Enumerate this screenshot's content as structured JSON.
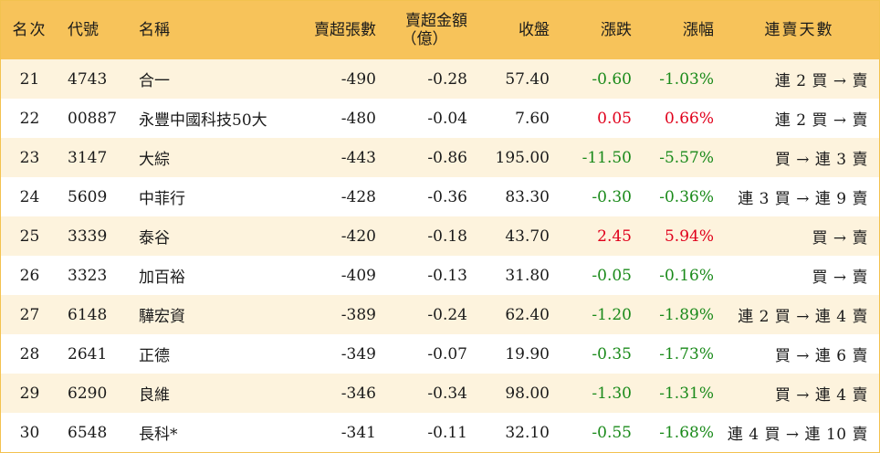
{
  "headers": {
    "rank": "名次",
    "code": "代號",
    "name": "名稱",
    "net_sell_lots": "賣超張數",
    "net_sell_amount_l1": "賣超金額",
    "net_sell_amount_l2": "（億）",
    "close": "收盤",
    "change": "漲跌",
    "change_pct": "漲幅",
    "streak": "連賣天數"
  },
  "colors": {
    "header_bg": "#f7c35a",
    "stripe_bg": "#fdf3dd",
    "up": "#e0001b",
    "down": "#1a8a1a"
  },
  "rows": [
    {
      "rank": "21",
      "code": "4743",
      "name": "合一",
      "lots": "-490",
      "amount": "-0.28",
      "close": "57.40",
      "change": "-0.60",
      "pct": "-1.03%",
      "streak": "連 2 買 → 賣",
      "dir": "down"
    },
    {
      "rank": "22",
      "code": "00887",
      "name": "永豐中國科技50大",
      "lots": "-480",
      "amount": "-0.04",
      "close": "7.60",
      "change": "0.05",
      "pct": "0.66%",
      "streak": "連 2 買 → 賣",
      "dir": "up"
    },
    {
      "rank": "23",
      "code": "3147",
      "name": "大綜",
      "lots": "-443",
      "amount": "-0.86",
      "close": "195.00",
      "change": "-11.50",
      "pct": "-5.57%",
      "streak": "買 → 連 3 賣",
      "dir": "down"
    },
    {
      "rank": "24",
      "code": "5609",
      "name": "中菲行",
      "lots": "-428",
      "amount": "-0.36",
      "close": "83.30",
      "change": "-0.30",
      "pct": "-0.36%",
      "streak": "連 3 買 → 連 9 賣",
      "dir": "down"
    },
    {
      "rank": "25",
      "code": "3339",
      "name": "泰谷",
      "lots": "-420",
      "amount": "-0.18",
      "close": "43.70",
      "change": "2.45",
      "pct": "5.94%",
      "streak": "買 → 賣",
      "dir": "up"
    },
    {
      "rank": "26",
      "code": "3323",
      "name": "加百裕",
      "lots": "-409",
      "amount": "-0.13",
      "close": "31.80",
      "change": "-0.05",
      "pct": "-0.16%",
      "streak": "買 → 賣",
      "dir": "down"
    },
    {
      "rank": "27",
      "code": "6148",
      "name": "驊宏資",
      "lots": "-389",
      "amount": "-0.24",
      "close": "62.40",
      "change": "-1.20",
      "pct": "-1.89%",
      "streak": "連 2 買 → 連 4 賣",
      "dir": "down"
    },
    {
      "rank": "28",
      "code": "2641",
      "name": "正德",
      "lots": "-349",
      "amount": "-0.07",
      "close": "19.90",
      "change": "-0.35",
      "pct": "-1.73%",
      "streak": "買 → 連 6 賣",
      "dir": "down"
    },
    {
      "rank": "29",
      "code": "6290",
      "name": "良維",
      "lots": "-346",
      "amount": "-0.34",
      "close": "98.00",
      "change": "-1.30",
      "pct": "-1.31%",
      "streak": "買 → 連 4 賣",
      "dir": "down"
    },
    {
      "rank": "30",
      "code": "6548",
      "name": "長科*",
      "lots": "-341",
      "amount": "-0.11",
      "close": "32.10",
      "change": "-0.55",
      "pct": "-1.68%",
      "streak": "連 4 買 → 連 10 賣",
      "dir": "down"
    }
  ]
}
